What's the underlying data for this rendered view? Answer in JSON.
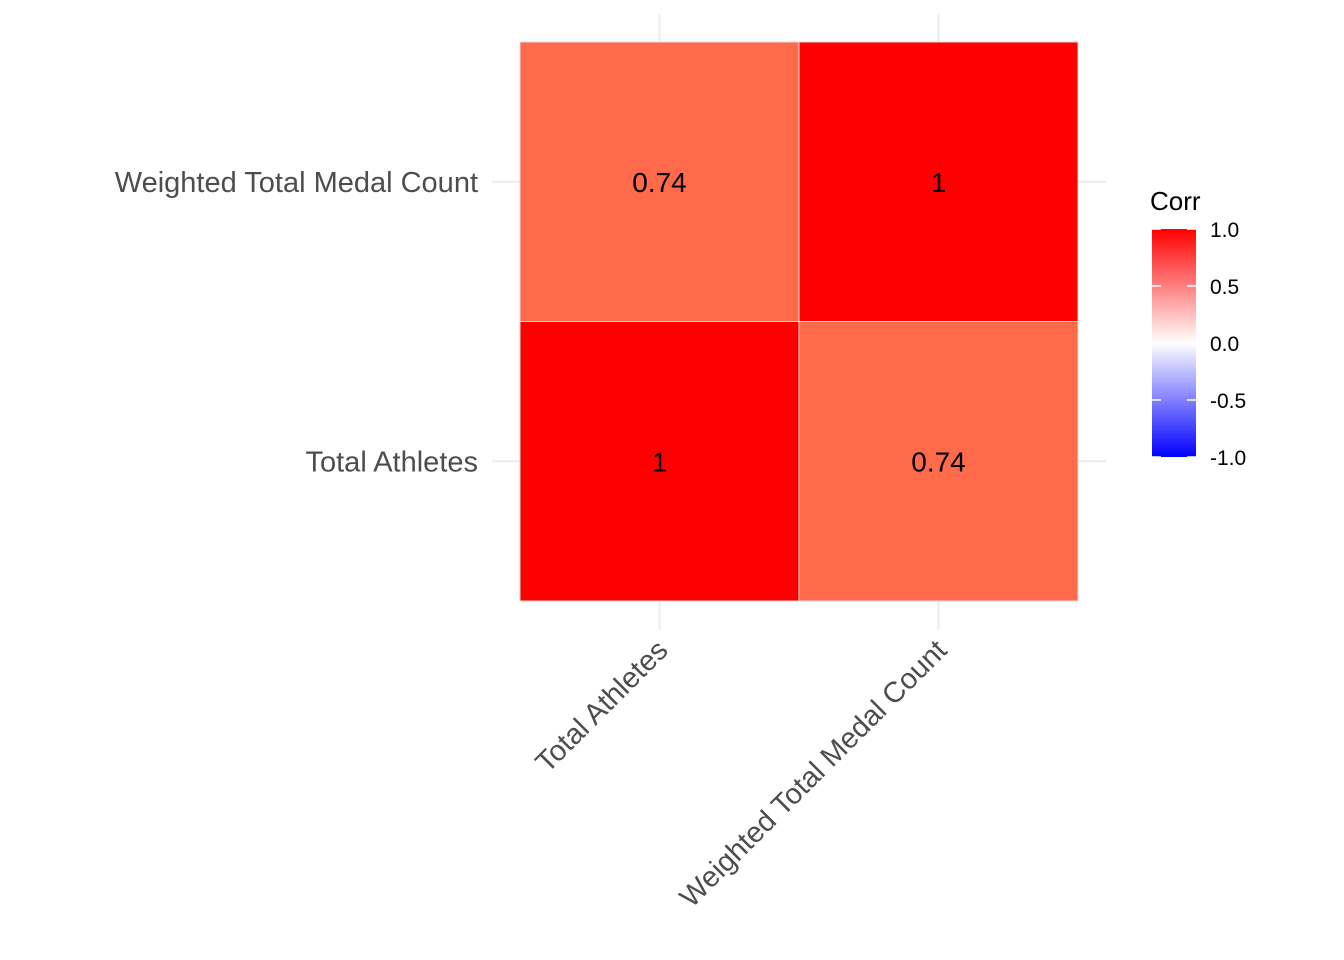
{
  "chart_data": {
    "type": "heatmap",
    "x_categories": [
      "Total Athletes",
      "Weighted Total Medal Count"
    ],
    "y_categories": [
      "Total Athletes",
      "Weighted Total Medal Count"
    ],
    "cells": [
      {
        "x": "Total Athletes",
        "y": "Total Athletes",
        "value": 1,
        "label": "1"
      },
      {
        "x": "Weighted Total Medal Count",
        "y": "Total Athletes",
        "value": 0.74,
        "label": "0.74"
      },
      {
        "x": "Total Athletes",
        "y": "Weighted Total Medal Count",
        "value": 0.74,
        "label": "0.74"
      },
      {
        "x": "Weighted Total Medal Count",
        "y": "Weighted Total Medal Count",
        "value": 1,
        "label": "1"
      }
    ],
    "title": "",
    "xlabel": "",
    "ylabel": "",
    "grid": true,
    "legend": {
      "title": "Corr",
      "placement": "right",
      "range": [
        -1,
        1
      ],
      "ticks": [
        1.0,
        0.5,
        0.0,
        -0.5,
        -1.0
      ],
      "tick_labels": [
        "1.0",
        "0.5",
        "0.0",
        "-0.5",
        "-1.0"
      ],
      "colors": {
        "low": "#0000FF",
        "mid": "#FFFFFF",
        "high": "#FF0000"
      }
    }
  }
}
